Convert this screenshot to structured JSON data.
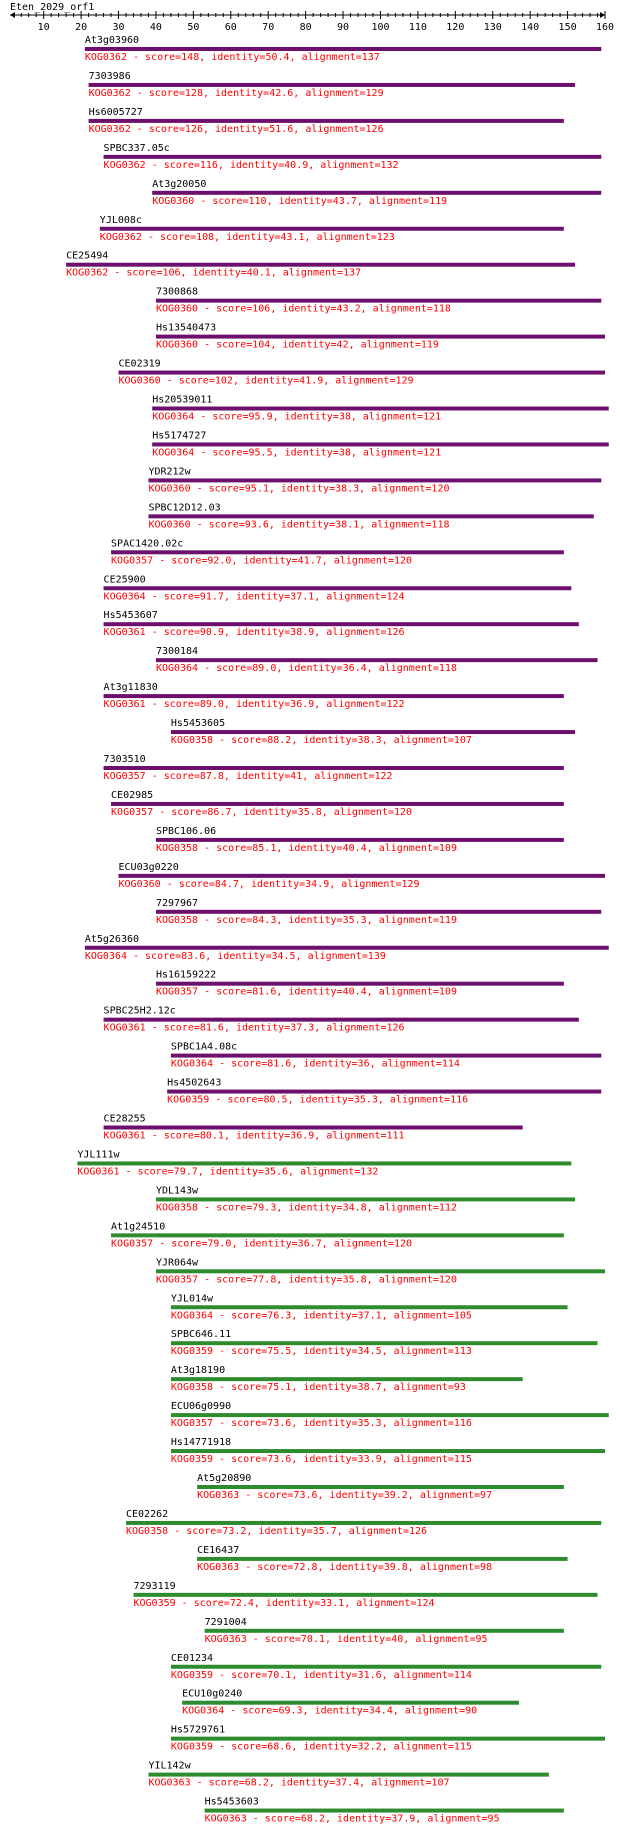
{
  "chart_data": {
    "type": "alignment",
    "title": "Eten_2029_orf1",
    "axis": {
      "min": 1,
      "max": 160,
      "ticks": [
        10,
        20,
        30,
        40,
        50,
        60,
        70,
        80,
        90,
        100,
        110,
        120,
        130,
        140,
        150,
        160
      ]
    },
    "colors": {
      "bar_purple": "#6d0f6d",
      "bar_green": "#2e8b2e",
      "detail_text": "#ff0000",
      "name_text": "#000000"
    },
    "hits": [
      {
        "name": "At3g03960",
        "kog": "KOG0362",
        "score": "148",
        "identity": "50.4",
        "alignment": "137",
        "start": 21,
        "end": 159,
        "color": "purple"
      },
      {
        "name": "7303986",
        "kog": "KOG0362",
        "score": "128",
        "identity": "42.6",
        "alignment": "129",
        "start": 22,
        "end": 152,
        "color": "purple"
      },
      {
        "name": "Hs6005727",
        "kog": "KOG0362",
        "score": "126",
        "identity": "51.6",
        "alignment": "126",
        "start": 22,
        "end": 149,
        "color": "purple"
      },
      {
        "name": "SPBC337.05c",
        "kog": "KOG0362",
        "score": "116",
        "identity": "40.9",
        "alignment": "132",
        "start": 26,
        "end": 159,
        "color": "purple"
      },
      {
        "name": "At3g20050",
        "kog": "KOG0360",
        "score": "110",
        "identity": "43.7",
        "alignment": "119",
        "start": 39,
        "end": 159,
        "color": "purple"
      },
      {
        "name": "YJL008c",
        "kog": "KOG0362",
        "score": "108",
        "identity": "43.1",
        "alignment": "123",
        "start": 25,
        "end": 149,
        "color": "purple"
      },
      {
        "name": "CE25494",
        "kog": "KOG0362",
        "score": "106",
        "identity": "40.1",
        "alignment": "137",
        "start": 16,
        "end": 152,
        "color": "purple"
      },
      {
        "name": "7300868",
        "kog": "KOG0360",
        "score": "106",
        "identity": "43.2",
        "alignment": "118",
        "start": 40,
        "end": 159,
        "color": "purple"
      },
      {
        "name": "Hs13540473",
        "kog": "KOG0360",
        "score": "104",
        "identity": "42",
        "alignment": "119",
        "start": 40,
        "end": 160,
        "color": "purple"
      },
      {
        "name": "CE02319",
        "kog": "KOG0360",
        "score": "102",
        "identity": "41.9",
        "alignment": "129",
        "start": 30,
        "end": 160,
        "color": "purple"
      },
      {
        "name": "Hs20539011",
        "kog": "KOG0364",
        "score": "95.9",
        "identity": "38",
        "alignment": "121",
        "start": 39,
        "end": 161,
        "color": "purple"
      },
      {
        "name": "Hs5174727",
        "kog": "KOG0364",
        "score": "95.5",
        "identity": "38",
        "alignment": "121",
        "start": 39,
        "end": 161,
        "color": "purple"
      },
      {
        "name": "YDR212w",
        "kog": "KOG0360",
        "score": "95.1",
        "identity": "38.3",
        "alignment": "120",
        "start": 38,
        "end": 159,
        "color": "purple"
      },
      {
        "name": "SPBC12D12.03",
        "kog": "KOG0360",
        "score": "93.6",
        "identity": "38.1",
        "alignment": "118",
        "start": 38,
        "end": 157,
        "color": "purple"
      },
      {
        "name": "SPAC1420.02c",
        "kog": "KOG0357",
        "score": "92.0",
        "identity": "41.7",
        "alignment": "120",
        "start": 28,
        "end": 149,
        "color": "purple"
      },
      {
        "name": "CE25900",
        "kog": "KOG0364",
        "score": "91.7",
        "identity": "37.1",
        "alignment": "124",
        "start": 26,
        "end": 151,
        "color": "purple"
      },
      {
        "name": "Hs5453607",
        "kog": "KOG0361",
        "score": "90.9",
        "identity": "38.9",
        "alignment": "126",
        "start": 26,
        "end": 153,
        "color": "purple"
      },
      {
        "name": "7300184",
        "kog": "KOG0364",
        "score": "89.0",
        "identity": "36.4",
        "alignment": "118",
        "start": 40,
        "end": 158,
        "color": "purple"
      },
      {
        "name": "At3g11830",
        "kog": "KOG0361",
        "score": "89.0",
        "identity": "36.9",
        "alignment": "122",
        "start": 26,
        "end": 149,
        "color": "purple"
      },
      {
        "name": "Hs5453605",
        "kog": "KOG0358",
        "score": "88.2",
        "identity": "38.3",
        "alignment": "107",
        "start": 44,
        "end": 152,
        "color": "purple"
      },
      {
        "name": "7303510",
        "kog": "KOG0357",
        "score": "87.8",
        "identity": "41",
        "alignment": "122",
        "start": 26,
        "end": 149,
        "color": "purple"
      },
      {
        "name": "CE02985",
        "kog": "KOG0357",
        "score": "86.7",
        "identity": "35.8",
        "alignment": "120",
        "start": 28,
        "end": 149,
        "color": "purple"
      },
      {
        "name": "SPBC106.06",
        "kog": "KOG0358",
        "score": "85.1",
        "identity": "40.4",
        "alignment": "109",
        "start": 40,
        "end": 149,
        "color": "purple"
      },
      {
        "name": "ECU03g0220",
        "kog": "KOG0360",
        "score": "84.7",
        "identity": "34.9",
        "alignment": "129",
        "start": 30,
        "end": 160,
        "color": "purple"
      },
      {
        "name": "7297967",
        "kog": "KOG0358",
        "score": "84.3",
        "identity": "35.3",
        "alignment": "119",
        "start": 40,
        "end": 159,
        "color": "purple"
      },
      {
        "name": "At5g26360",
        "kog": "KOG0364",
        "score": "83.6",
        "identity": "34.5",
        "alignment": "139",
        "start": 21,
        "end": 161,
        "color": "purple"
      },
      {
        "name": "Hs16159222",
        "kog": "KOG0357",
        "score": "81.6",
        "identity": "40.4",
        "alignment": "109",
        "start": 40,
        "end": 149,
        "color": "purple"
      },
      {
        "name": "SPBC25H2.12c",
        "kog": "KOG0361",
        "score": "81.6",
        "identity": "37.3",
        "alignment": "126",
        "start": 26,
        "end": 153,
        "color": "purple"
      },
      {
        "name": "SPBC1A4.08c",
        "kog": "KOG0364",
        "score": "81.6",
        "identity": "36",
        "alignment": "114",
        "start": 44,
        "end": 159,
        "color": "purple"
      },
      {
        "name": "Hs4502643",
        "kog": "KOG0359",
        "score": "80.5",
        "identity": "35.3",
        "alignment": "116",
        "start": 43,
        "end": 159,
        "color": "purple"
      },
      {
        "name": "CE28255",
        "kog": "KOG0361",
        "score": "80.1",
        "identity": "36.9",
        "alignment": "111",
        "start": 26,
        "end": 138,
        "color": "purple"
      },
      {
        "name": "YJL111w",
        "kog": "KOG0361",
        "score": "79.7",
        "identity": "35.6",
        "alignment": "132",
        "start": 19,
        "end": 151,
        "color": "green"
      },
      {
        "name": "YDL143w",
        "kog": "KOG0358",
        "score": "79.3",
        "identity": "34.8",
        "alignment": "112",
        "start": 40,
        "end": 152,
        "color": "green"
      },
      {
        "name": "At1g24510",
        "kog": "KOG0357",
        "score": "79.0",
        "identity": "36.7",
        "alignment": "120",
        "start": 28,
        "end": 149,
        "color": "green"
      },
      {
        "name": "YJR064w",
        "kog": "KOG0357",
        "score": "77.8",
        "identity": "35.8",
        "alignment": "120",
        "start": 40,
        "end": 160,
        "color": "green"
      },
      {
        "name": "YJL014w",
        "kog": "KOG0364",
        "score": "76.3",
        "identity": "37.1",
        "alignment": "105",
        "start": 44,
        "end": 150,
        "color": "green"
      },
      {
        "name": "SPBC646.11",
        "kog": "KOG0359",
        "score": "75.5",
        "identity": "34.5",
        "alignment": "113",
        "start": 44,
        "end": 158,
        "color": "green"
      },
      {
        "name": "At3g18190",
        "kog": "KOG0358",
        "score": "75.1",
        "identity": "38.7",
        "alignment": "93",
        "start": 44,
        "end": 138,
        "color": "green"
      },
      {
        "name": "ECU06g0990",
        "kog": "KOG0357",
        "score": "73.6",
        "identity": "35.3",
        "alignment": "116",
        "start": 44,
        "end": 161,
        "color": "green"
      },
      {
        "name": "Hs14771918",
        "kog": "KOG0359",
        "score": "73.6",
        "identity": "33.9",
        "alignment": "115",
        "start": 44,
        "end": 160,
        "color": "green"
      },
      {
        "name": "At5g20890",
        "kog": "KOG0363",
        "score": "73.6",
        "identity": "39.2",
        "alignment": "97",
        "start": 51,
        "end": 149,
        "color": "green"
      },
      {
        "name": "CE02262",
        "kog": "KOG0358",
        "score": "73.2",
        "identity": "35.7",
        "alignment": "126",
        "start": 32,
        "end": 159,
        "color": "green"
      },
      {
        "name": "CE16437",
        "kog": "KOG0363",
        "score": "72.8",
        "identity": "39.8",
        "alignment": "98",
        "start": 51,
        "end": 150,
        "color": "green"
      },
      {
        "name": "7293119",
        "kog": "KOG0359",
        "score": "72.4",
        "identity": "33.1",
        "alignment": "124",
        "start": 34,
        "end": 158,
        "color": "green"
      },
      {
        "name": "7291004",
        "kog": "KOG0363",
        "score": "70.1",
        "identity": "40",
        "alignment": "95",
        "start": 53,
        "end": 149,
        "color": "green"
      },
      {
        "name": "CE01234",
        "kog": "KOG0359",
        "score": "70.1",
        "identity": "31.6",
        "alignment": "114",
        "start": 44,
        "end": 159,
        "color": "green"
      },
      {
        "name": "ECU10g0240",
        "kog": "KOG0364",
        "score": "69.3",
        "identity": "34.4",
        "alignment": "90",
        "start": 47,
        "end": 137,
        "color": "green"
      },
      {
        "name": "Hs5729761",
        "kog": "KOG0359",
        "score": "68.6",
        "identity": "32.2",
        "alignment": "115",
        "start": 44,
        "end": 160,
        "color": "green"
      },
      {
        "name": "YIL142w",
        "kog": "KOG0363",
        "score": "68.2",
        "identity": "37.4",
        "alignment": "107",
        "start": 38,
        "end": 145,
        "color": "green"
      },
      {
        "name": "Hs5453603",
        "kog": "KOG0363",
        "score": "68.2",
        "identity": "37.9",
        "alignment": "95",
        "start": 53,
        "end": 149,
        "color": "green"
      }
    ]
  }
}
